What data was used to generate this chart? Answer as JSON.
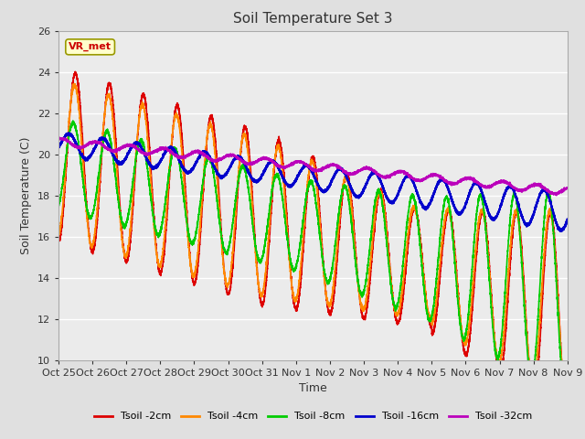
{
  "title": "Soil Temperature Set 3",
  "xlabel": "Time",
  "ylabel": "Soil Temperature (C)",
  "ylim": [
    10,
    26
  ],
  "xlim": [
    0,
    15
  ],
  "background_color": "#e0e0e0",
  "plot_bg_color": "#ebebeb",
  "annotation_text": "VR_met",
  "annotation_bg": "#ffffcc",
  "annotation_border": "#999900",
  "tick_labels": [
    "Oct 25",
    "Oct 26",
    "Oct 27",
    "Oct 28",
    "Oct 29",
    "Oct 30",
    "Oct 31",
    "Nov 1",
    "Nov 2",
    "Nov 3",
    "Nov 4",
    "Nov 5",
    "Nov 6",
    "Nov 7",
    "Nov 8",
    "Nov 9"
  ],
  "series_colors": [
    "#dd0000",
    "#ff8800",
    "#00cc00",
    "#0000cc",
    "#bb00bb"
  ],
  "series_names": [
    "Tsoil -2cm",
    "Tsoil -4cm",
    "Tsoil -8cm",
    "Tsoil -16cm",
    "Tsoil -32cm"
  ],
  "series_lw": [
    1.2,
    1.2,
    1.2,
    1.5,
    1.2
  ]
}
